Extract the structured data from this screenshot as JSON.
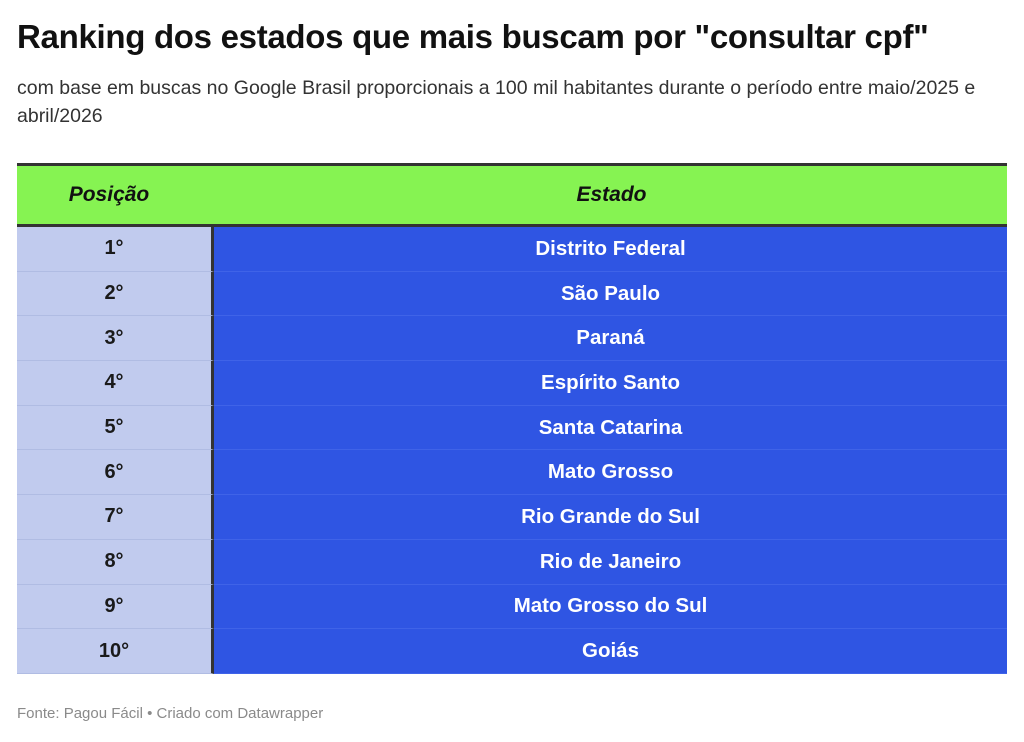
{
  "title": "Ranking dos estados que mais buscam por \"consultar cpf\"",
  "subtitle": "com base em buscas no Google Brasil proporcionais a 100 mil habitantes durante o período entre maio/2025 e abril/2026",
  "chart_data": {
    "type": "table",
    "columns": [
      "Posição",
      "Estado"
    ],
    "rows": [
      {
        "posicao": "1°",
        "estado": "Distrito Federal"
      },
      {
        "posicao": "2°",
        "estado": "São Paulo"
      },
      {
        "posicao": "3°",
        "estado": "Paraná"
      },
      {
        "posicao": "4°",
        "estado": "Espírito Santo"
      },
      {
        "posicao": "5°",
        "estado": "Santa Catarina"
      },
      {
        "posicao": "6°",
        "estado": "Mato Grosso"
      },
      {
        "posicao": "7°",
        "estado": "Rio Grande do Sul"
      },
      {
        "posicao": "8°",
        "estado": "Rio de Janeiro"
      },
      {
        "posicao": "9°",
        "estado": "Mato Grosso do Sul"
      },
      {
        "posicao": "10°",
        "estado": "Goiás"
      }
    ]
  },
  "footer": "Fonte: Pagou Fácil • Criado com Datawrapper",
  "colors": {
    "header_bg": "#86f352",
    "position_bg": "#c1cbee",
    "state_bg": "#2f55e3",
    "state_text": "#ffffff"
  }
}
